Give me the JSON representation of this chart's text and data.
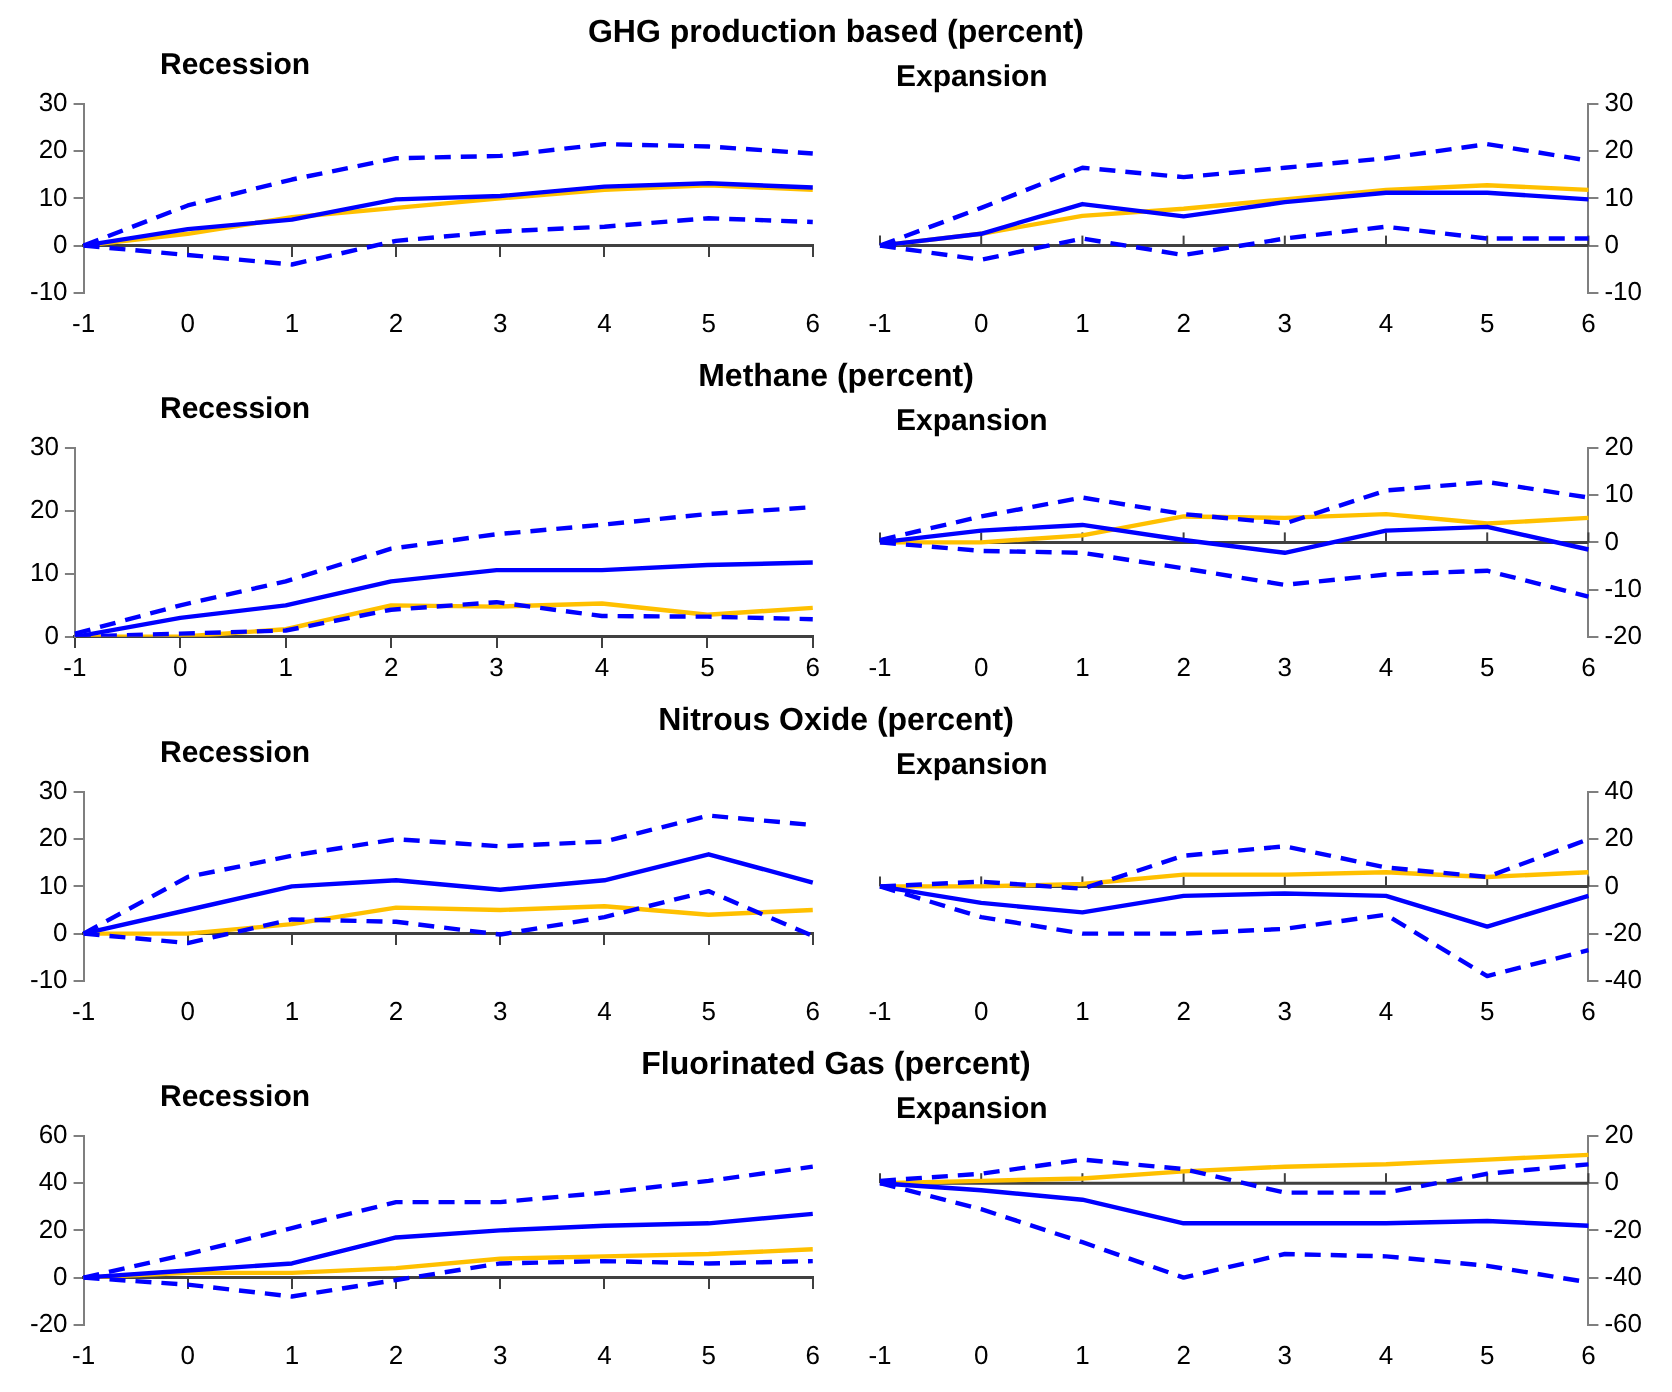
{
  "chart_data": [
    {
      "type": "line",
      "title": "GHG production based (percent)",
      "subtitle": "Recession",
      "categories": [
        "-1",
        "0",
        "1",
        "2",
        "3",
        "4",
        "5",
        "6"
      ],
      "ylim": [
        -10,
        30
      ],
      "yticks": [
        -10,
        0,
        10,
        20,
        30
      ],
      "grid": false,
      "legend": false,
      "marker": "none",
      "series": [
        {
          "color": "#0000ff",
          "line_style": "dashed",
          "values": [
            0,
            8.5,
            14,
            18.5,
            19,
            21.5,
            21,
            19.5
          ]
        },
        {
          "color": "#0000ff",
          "line_style": "solid",
          "values": [
            0,
            3.5,
            5.5,
            9.8,
            10.5,
            12.5,
            13.2,
            12.3
          ]
        },
        {
          "color": "#0000ff",
          "line_style": "dashed",
          "values": [
            0,
            -2,
            -4,
            1,
            3,
            4,
            5.8,
            5
          ]
        },
        {
          "color": "#ffc000",
          "line_style": "solid",
          "values": [
            0,
            2.5,
            6,
            8,
            10,
            11.8,
            12.8,
            11.8
          ]
        }
      ]
    },
    {
      "type": "line",
      "subtitle": "Expansion",
      "categories": [
        "-1",
        "0",
        "1",
        "2",
        "3",
        "4",
        "5",
        "6"
      ],
      "y2lim": [
        -10,
        30
      ],
      "y2ticks": [
        -10,
        0,
        10,
        20,
        30
      ],
      "grid": false,
      "legend": false,
      "marker": "none",
      "ref_lines": [
        {
          "axis": "y2",
          "value": 0,
          "color": "#404040"
        }
      ],
      "series": [
        {
          "color": "#0000ff",
          "line_style": "dashed",
          "axis": "y2",
          "values": [
            0,
            8,
            16.5,
            14.5,
            16.5,
            18.5,
            21.5,
            18
          ]
        },
        {
          "color": "#0000ff",
          "line_style": "solid",
          "axis": "y2",
          "values": [
            0,
            2.5,
            8.8,
            6.2,
            9.2,
            11.2,
            11.2,
            9.8
          ]
        },
        {
          "color": "#0000ff",
          "line_style": "dashed",
          "axis": "y2",
          "values": [
            0,
            -3,
            1.5,
            -2,
            1.5,
            4,
            1.5,
            1.5
          ]
        },
        {
          "color": "#ffc000",
          "line_style": "solid",
          "axis": "y2",
          "values": [
            0,
            2.5,
            6.3,
            7.8,
            9.8,
            11.8,
            12.8,
            11.8
          ]
        }
      ]
    },
    {
      "type": "line",
      "title": "Methane (percent)",
      "subtitle": "Recession",
      "categories": [
        "-1",
        "0",
        "1",
        "2",
        "3",
        "4",
        "5",
        "6"
      ],
      "ylim": [
        0,
        30
      ],
      "yticks": [
        0,
        10,
        20,
        30
      ],
      "grid": false,
      "legend": false,
      "marker": "none",
      "series": [
        {
          "color": "#0000ff",
          "line_style": "dashed",
          "values": [
            0.5,
            5,
            8.8,
            14,
            16.3,
            17.8,
            19.5,
            20.6
          ]
        },
        {
          "color": "#0000ff",
          "line_style": "solid",
          "values": [
            0,
            3,
            5,
            8.8,
            10.6,
            10.6,
            11.4,
            11.8
          ]
        },
        {
          "color": "#0000ff",
          "line_style": "dashed",
          "values": [
            0,
            0.5,
            1,
            4.3,
            5.5,
            3.3,
            3.2,
            2.8
          ]
        },
        {
          "color": "#ffc000",
          "line_style": "solid",
          "values": [
            0,
            0,
            1.2,
            5,
            4.8,
            5.3,
            3.5,
            4.6
          ]
        }
      ]
    },
    {
      "type": "line",
      "subtitle": "Expansion",
      "categories": [
        "-1",
        "0",
        "1",
        "2",
        "3",
        "4",
        "5",
        "6"
      ],
      "y2lim": [
        -20,
        20
      ],
      "y2ticks": [
        -20,
        -10,
        0,
        10,
        20
      ],
      "grid": false,
      "legend": false,
      "marker": "none",
      "ref_lines": [
        {
          "axis": "y2",
          "value": 0,
          "color": "#404040"
        }
      ],
      "series": [
        {
          "color": "#0000ff",
          "line_style": "dashed",
          "axis": "y2",
          "values": [
            0.5,
            5.5,
            9.5,
            6,
            4,
            11,
            12.8,
            9.5
          ]
        },
        {
          "color": "#0000ff",
          "line_style": "solid",
          "axis": "y2",
          "values": [
            0,
            2.5,
            3.7,
            0.5,
            -2.2,
            2.5,
            3.3,
            -1.5
          ]
        },
        {
          "color": "#0000ff",
          "line_style": "dashed",
          "axis": "y2",
          "values": [
            0,
            -1.8,
            -2.2,
            -5.5,
            -9,
            -6.8,
            -6,
            -11.5
          ]
        },
        {
          "color": "#ffc000",
          "line_style": "solid",
          "axis": "y2",
          "values": [
            0,
            0,
            1.5,
            5.5,
            5.2,
            6,
            4,
            5.2
          ]
        }
      ]
    },
    {
      "type": "line",
      "title": "Nitrous Oxide (percent)",
      "subtitle": "Recession",
      "categories": [
        "-1",
        "0",
        "1",
        "2",
        "3",
        "4",
        "5",
        "6"
      ],
      "ylim": [
        -10,
        30
      ],
      "yticks": [
        -10,
        0,
        10,
        20,
        30
      ],
      "grid": false,
      "legend": false,
      "marker": "none",
      "series": [
        {
          "color": "#0000ff",
          "line_style": "dashed",
          "values": [
            0,
            12,
            16.5,
            20,
            18.5,
            19.5,
            25,
            23
          ]
        },
        {
          "color": "#0000ff",
          "line_style": "solid",
          "values": [
            0,
            5,
            10,
            11.3,
            9.3,
            11.3,
            16.8,
            10.8
          ]
        },
        {
          "color": "#0000ff",
          "line_style": "dashed",
          "values": [
            0,
            -2,
            3,
            2.5,
            -0.2,
            3.5,
            9,
            -0.5
          ]
        },
        {
          "color": "#ffc000",
          "line_style": "solid",
          "values": [
            0,
            0,
            2,
            5.5,
            5,
            5.8,
            4,
            5
          ]
        }
      ]
    },
    {
      "type": "line",
      "subtitle": "Expansion",
      "categories": [
        "-1",
        "0",
        "1",
        "2",
        "3",
        "4",
        "5",
        "6"
      ],
      "y2lim": [
        -40,
        40
      ],
      "y2ticks": [
        -40,
        -20,
        0,
        20,
        40
      ],
      "grid": false,
      "legend": false,
      "marker": "none",
      "ref_lines": [
        {
          "axis": "y2",
          "value": 0,
          "color": "#404040"
        }
      ],
      "series": [
        {
          "color": "#0000ff",
          "line_style": "dashed",
          "axis": "y2",
          "values": [
            0,
            2,
            -1,
            13,
            17,
            8,
            4,
            20
          ]
        },
        {
          "color": "#0000ff",
          "line_style": "solid",
          "axis": "y2",
          "values": [
            0,
            -7,
            -11,
            -4,
            -3,
            -4,
            -17,
            -4
          ]
        },
        {
          "color": "#0000ff",
          "line_style": "dashed",
          "axis": "y2",
          "values": [
            0,
            -13,
            -20,
            -20,
            -18,
            -12,
            -38,
            -27
          ]
        },
        {
          "color": "#ffc000",
          "line_style": "solid",
          "axis": "y2",
          "values": [
            0,
            0,
            1,
            5,
            5,
            6,
            4,
            6
          ]
        }
      ]
    },
    {
      "type": "line",
      "title": "Fluorinated Gas (percent)",
      "subtitle": "Recession",
      "categories": [
        "-1",
        "0",
        "1",
        "2",
        "3",
        "4",
        "5",
        "6"
      ],
      "ylim": [
        -20,
        60
      ],
      "yticks": [
        -20,
        0,
        20,
        40,
        60
      ],
      "grid": false,
      "legend": false,
      "marker": "none",
      "series": [
        {
          "color": "#0000ff",
          "line_style": "dashed",
          "values": [
            0,
            10,
            21,
            32,
            32,
            36,
            41,
            47
          ]
        },
        {
          "color": "#0000ff",
          "line_style": "solid",
          "values": [
            0,
            3,
            6,
            17,
            20,
            22,
            23,
            27
          ]
        },
        {
          "color": "#0000ff",
          "line_style": "dashed",
          "values": [
            0,
            -3,
            -8,
            -1,
            6,
            7,
            6,
            7
          ]
        },
        {
          "color": "#ffc000",
          "line_style": "solid",
          "values": [
            0,
            2,
            2,
            4,
            8,
            9,
            10,
            12
          ]
        }
      ]
    },
    {
      "type": "line",
      "subtitle": "Expansion",
      "categories": [
        "-1",
        "0",
        "1",
        "2",
        "3",
        "4",
        "5",
        "6"
      ],
      "y2lim": [
        -60,
        20
      ],
      "y2ticks": [
        -60,
        -40,
        -20,
        0,
        20
      ],
      "grid": false,
      "legend": false,
      "marker": "none",
      "ref_lines": [
        {
          "axis": "y2",
          "value": 0,
          "color": "#404040"
        }
      ],
      "series": [
        {
          "color": "#0000ff",
          "line_style": "dashed",
          "axis": "y2",
          "values": [
            1,
            4,
            10,
            6,
            -4,
            -4,
            4,
            8
          ]
        },
        {
          "color": "#0000ff",
          "line_style": "solid",
          "axis": "y2",
          "values": [
            0,
            -3,
            -7,
            -17,
            -17,
            -17,
            -16,
            -18
          ]
        },
        {
          "color": "#0000ff",
          "line_style": "dashed",
          "axis": "y2",
          "values": [
            0,
            -11,
            -25,
            -40,
            -30,
            -31,
            -35,
            -42
          ]
        },
        {
          "color": "#ffc000",
          "line_style": "solid",
          "axis": "y2",
          "values": [
            0,
            1,
            2,
            5,
            7,
            8,
            10,
            12
          ]
        }
      ]
    }
  ]
}
